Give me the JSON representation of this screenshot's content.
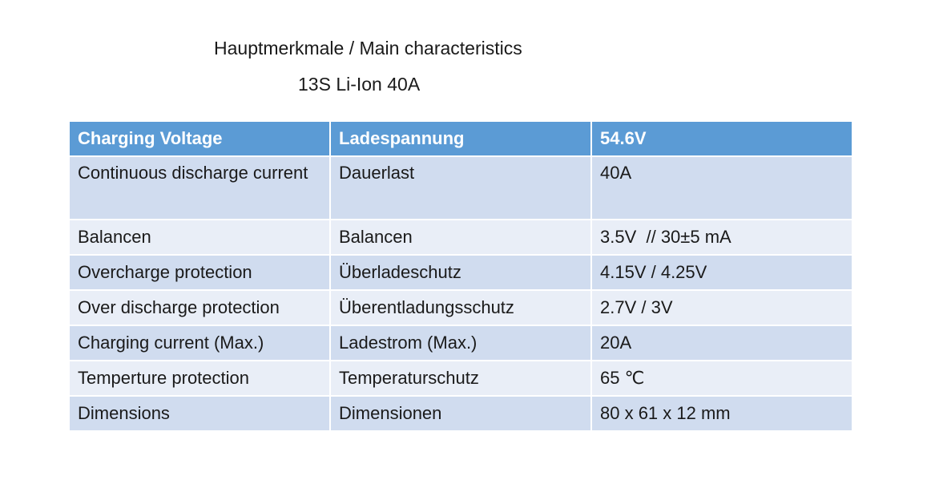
{
  "title": "Hauptmerkmale / Main characteristics",
  "subtitle": "13S Li-Ion 40A",
  "table": {
    "header": [
      "Charging Voltage",
      "Ladespannung",
      "54.6V"
    ],
    "rows": [
      [
        "Continuous discharge current",
        "Dauerlast",
        "40A"
      ],
      [
        "Balancen",
        "Balancen",
        "3.5V  // 30±5 mA"
      ],
      [
        "Overcharge protection",
        "Überladeschutz",
        "4.15V / 4.25V"
      ],
      [
        "Over discharge protection",
        "Überentladungsschutz",
        "2.7V / 3V"
      ],
      [
        "Charging current (Max.)",
        "Ladestrom (Max.)",
        "20A"
      ],
      [
        "Temperture protection",
        "Temperaturschutz",
        "65 ℃"
      ],
      [
        "Dimensions",
        "Dimensionen",
        "80 x 61 x 12 mm"
      ]
    ]
  }
}
